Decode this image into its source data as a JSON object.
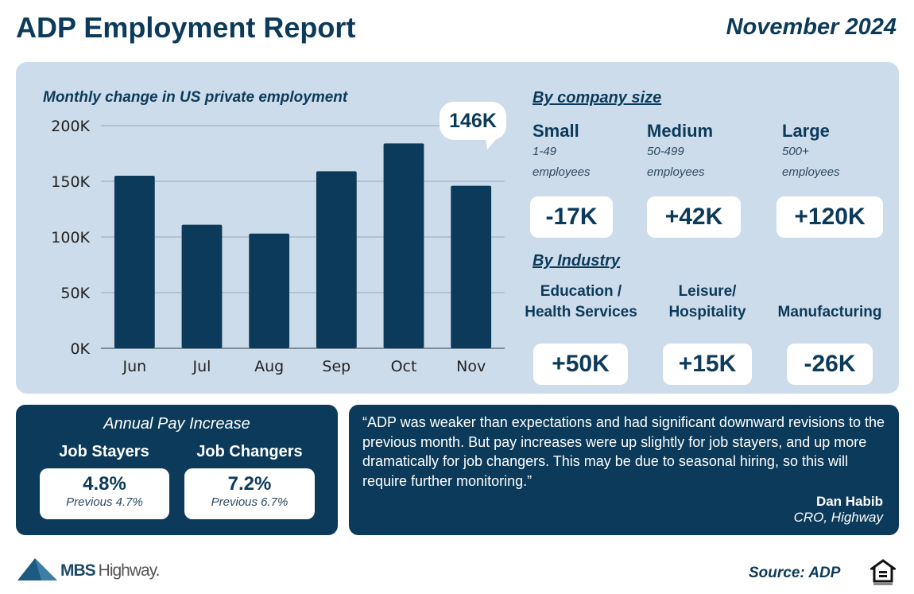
{
  "header": {
    "title": "ADP Employment Report",
    "date": "November 2024"
  },
  "chart_data": {
    "type": "bar",
    "title": "Monthly change in US private employment",
    "categories": [
      "Jun",
      "Jul",
      "Aug",
      "Sep",
      "Oct",
      "Nov"
    ],
    "values": [
      155,
      111,
      103,
      159,
      184,
      146
    ],
    "unit": "K",
    "ylim": [
      0,
      200
    ],
    "yticks": [
      "0K",
      "50K",
      "100K",
      "150K",
      "200K"
    ],
    "grid": true,
    "callout": "146K",
    "color": "#0b3a5a"
  },
  "company_size": {
    "heading": "By company size",
    "items": [
      {
        "name": "Small",
        "range": "1-49",
        "sub": "employees",
        "value": "-17K"
      },
      {
        "name": "Medium",
        "range": "50-499",
        "sub": "employees",
        "value": "+42K"
      },
      {
        "name": "Large",
        "range": "500+",
        "sub": "employees",
        "value": "+120K"
      }
    ]
  },
  "industry": {
    "heading": "By Industry",
    "items": [
      {
        "line1": "Education /",
        "line2": "Health Services",
        "value": "+50K"
      },
      {
        "line1": "Leisure/",
        "line2": "Hospitality",
        "value": "+15K"
      },
      {
        "line1": "",
        "line2": "Manufacturing",
        "value": "-26K"
      }
    ]
  },
  "pay": {
    "title": "Annual Pay Increase",
    "items": [
      {
        "label": "Job Stayers",
        "value": "4.8%",
        "previous": "Previous 4.7%"
      },
      {
        "label": "Job Changers",
        "value": "7.2%",
        "previous": "Previous 6.7%"
      }
    ]
  },
  "quote": {
    "text": "“ADP was weaker than expectations and had significant downward revisions to the previous month. But pay increases were up slightly for job stayers, and up more dramatically for job changers. This may be due to seasonal hiring, so this will require further monitoring.”",
    "author": "Dan Habib",
    "role": "CRO, Highway"
  },
  "footer": {
    "logo_bold": "MBS",
    "logo_light": "Highway.",
    "source": "Source: ADP"
  },
  "colors": {
    "navy": "#0b3a5a",
    "panel": "#cddcea"
  }
}
